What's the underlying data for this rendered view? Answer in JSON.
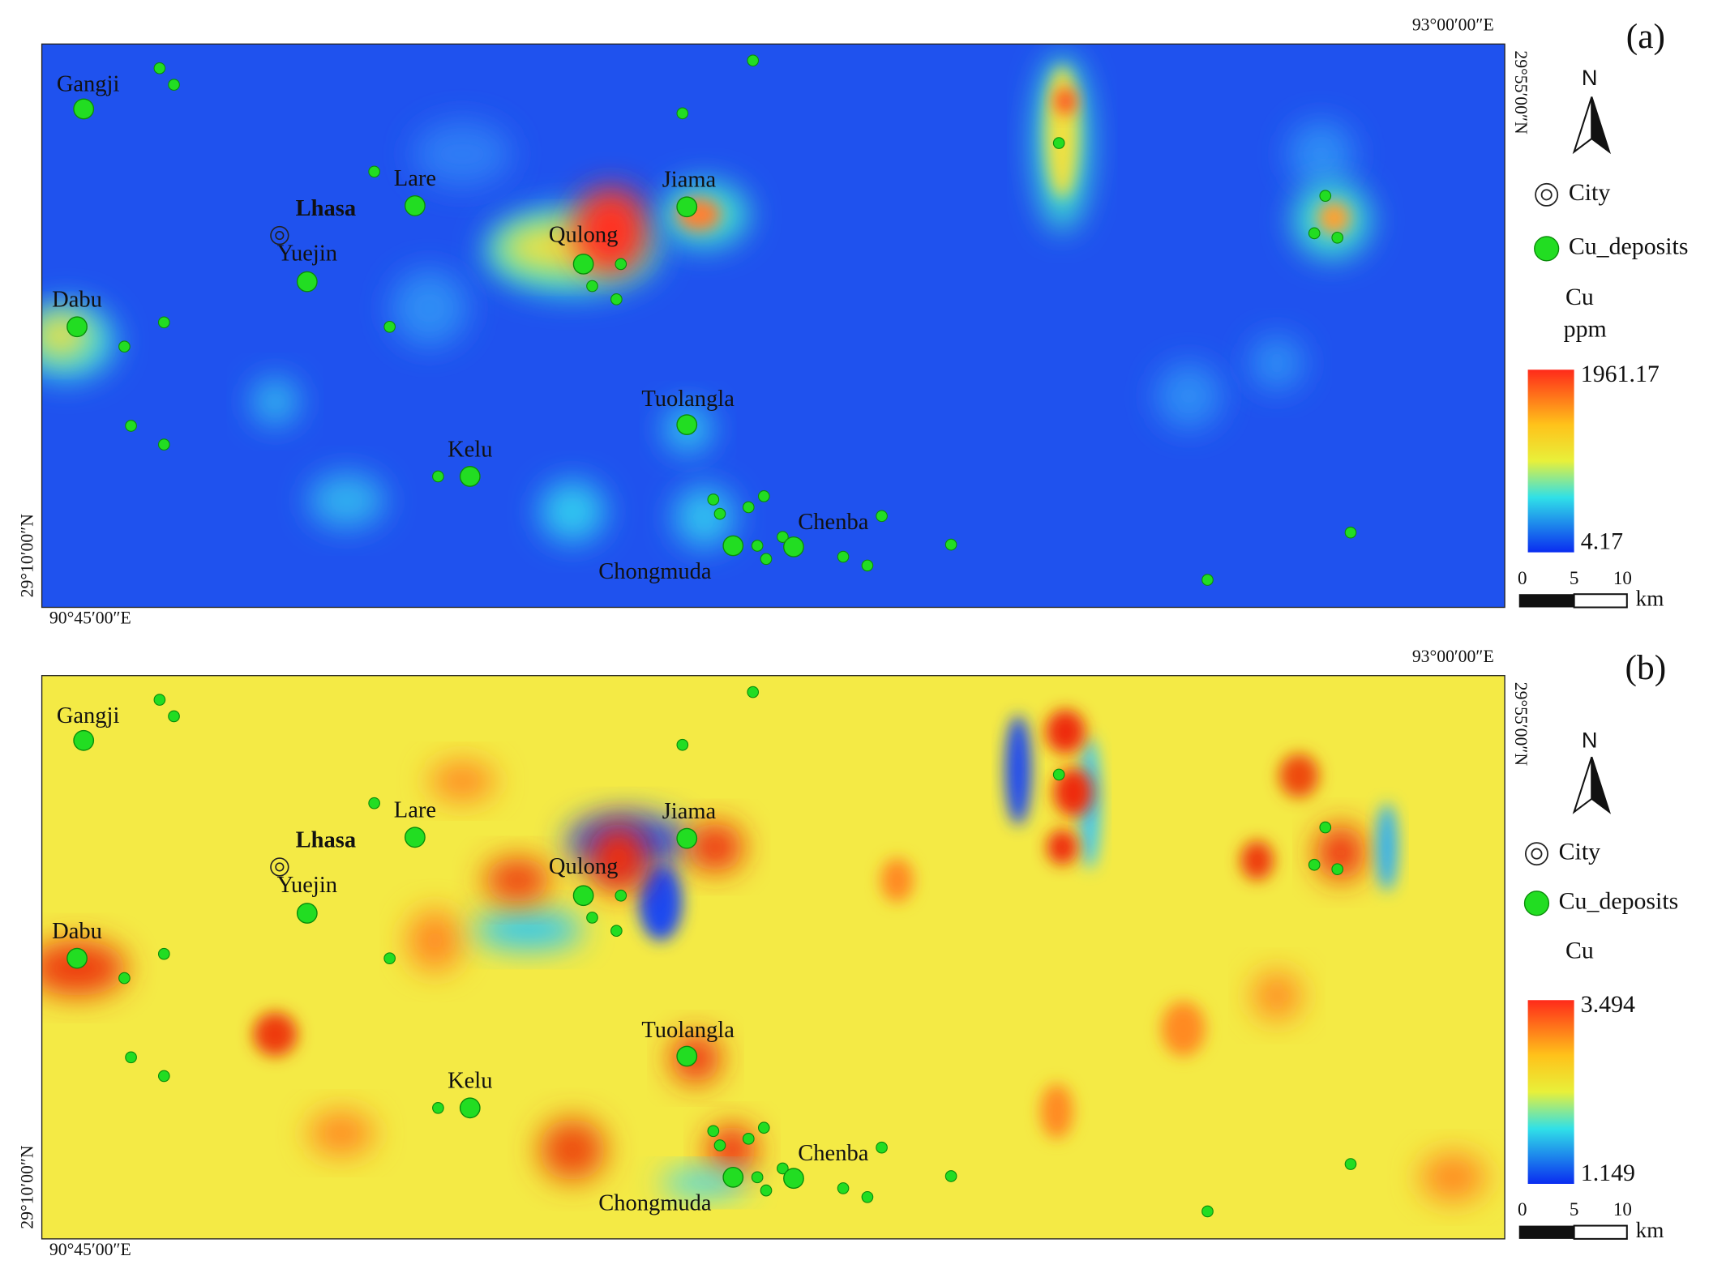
{
  "panels": [
    {
      "label": "(a)",
      "top_longitude": "93°00′00″E",
      "right_latitude": "29°55′00″N",
      "left_latitude": "29°10′00″N",
      "bottom_longitude": "90°45′00″E",
      "places": [
        {
          "name": "Gangji"
        },
        {
          "name": "Lare"
        },
        {
          "name": "Lhasa"
        },
        {
          "name": "Yuejin"
        },
        {
          "name": "Dabu"
        },
        {
          "name": "Qulong"
        },
        {
          "name": "Jiama"
        },
        {
          "name": "Tuolangla"
        },
        {
          "name": "Kelu"
        },
        {
          "name": "Chenba"
        },
        {
          "name": "Chongmuda"
        }
      ],
      "legend": {
        "north": "N",
        "city": "City",
        "deposits": "Cu_deposits",
        "variable": "Cu",
        "unit": "ppm",
        "max": "1961.17",
        "min": "4.17",
        "scale": [
          "0",
          "5",
          "10"
        ],
        "scale_unit": "km"
      }
    },
    {
      "label": "(b)",
      "top_longitude": "93°00′00″E",
      "right_latitude": "29°55′00″N",
      "left_latitude": "29°10′00″N",
      "bottom_longitude": "90°45′00″E",
      "places": [
        {
          "name": "Gangji"
        },
        {
          "name": "Lare"
        },
        {
          "name": "Lhasa"
        },
        {
          "name": "Yuejin"
        },
        {
          "name": "Dabu"
        },
        {
          "name": "Qulong"
        },
        {
          "name": "Jiama"
        },
        {
          "name": "Tuolangla"
        },
        {
          "name": "Kelu"
        },
        {
          "name": "Chenba"
        },
        {
          "name": "Chongmuda"
        }
      ],
      "legend": {
        "north": "N",
        "city": "City",
        "deposits": "Cu_deposits",
        "variable": "Cu",
        "max": "3.494",
        "min": "1.149",
        "scale": [
          "0",
          "5",
          "10"
        ],
        "scale_unit": "km"
      }
    }
  ]
}
